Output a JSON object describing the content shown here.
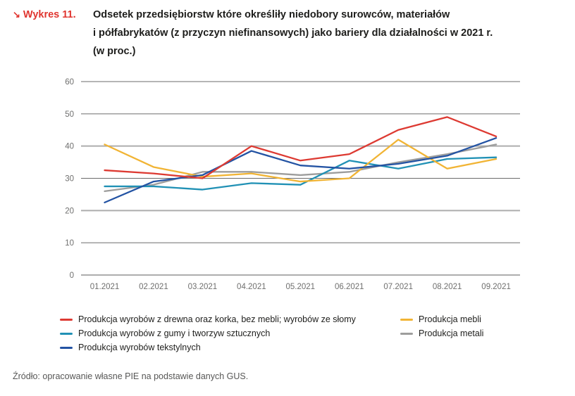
{
  "header": {
    "kicker_arrow": "↘",
    "kicker": "Wykres 11.",
    "title_lines": [
      "Odsetek przedsiębiorstw które określiły niedobory surowców, materiałów",
      "i półfabrykatów (z przyczyn niefinansowych) jako bariery dla działalności w 2021 r.",
      "(w proc.)"
    ]
  },
  "colors": {
    "accent_red": "#e0352f",
    "series_red": "#dd3a32",
    "series_teal": "#2191b5",
    "series_navy": "#2353a3",
    "series_yellow": "#f1b434",
    "series_gray": "#9d9d9c"
  },
  "chart_data": {
    "type": "line",
    "categories": [
      "01.2021",
      "02.2021",
      "03.2021",
      "04.2021",
      "05.2021",
      "06.2021",
      "07.2021",
      "08.2021",
      "09.2021"
    ],
    "series": [
      {
        "name": "Produkcja wyrobów z drewna oraz korka, bez mebli; wyrobów ze słomy",
        "color": "#dd3a32",
        "values": [
          32.5,
          31.5,
          30,
          40,
          35.5,
          37.5,
          45,
          49,
          43
        ]
      },
      {
        "name": "Produkcja wyrobów z gumy i tworzyw sztucznych",
        "color": "#2191b5",
        "values": [
          27.5,
          27.5,
          26.5,
          28.5,
          28,
          35.5,
          33,
          36,
          36.5
        ]
      },
      {
        "name": "Produkcja wyrobów tekstylnych",
        "color": "#2353a3",
        "values": [
          22.5,
          29,
          31,
          38.5,
          34,
          33,
          34.5,
          37,
          42.5
        ]
      },
      {
        "name": "Produkcja mebli",
        "color": "#f1b434",
        "values": [
          40.5,
          33.5,
          30.5,
          31.5,
          29,
          30,
          42,
          33,
          36
        ]
      },
      {
        "name": "Produkcja metali",
        "color": "#9d9d9c",
        "values": [
          26,
          28,
          32,
          32,
          31,
          32,
          35,
          37.5,
          40.5
        ]
      }
    ],
    "title": "Odsetek przedsiębiorstw które określiły niedobory surowców, materiałów i półfabrykatów (z przyczyn niefinansowych) jako bariery dla działalności w 2021 r. (w proc.)",
    "xlabel": "",
    "ylabel": "",
    "ylim": [
      0,
      60
    ],
    "yticks": [
      0,
      10,
      20,
      30,
      40,
      50,
      60
    ],
    "grid": "horizontal-only",
    "legend_position": "bottom"
  },
  "legend": {
    "columns": [
      [
        0,
        1,
        2
      ],
      [
        3,
        4
      ]
    ]
  },
  "source": "Źródło: opracowanie własne PIE na podstawie danych GUS."
}
